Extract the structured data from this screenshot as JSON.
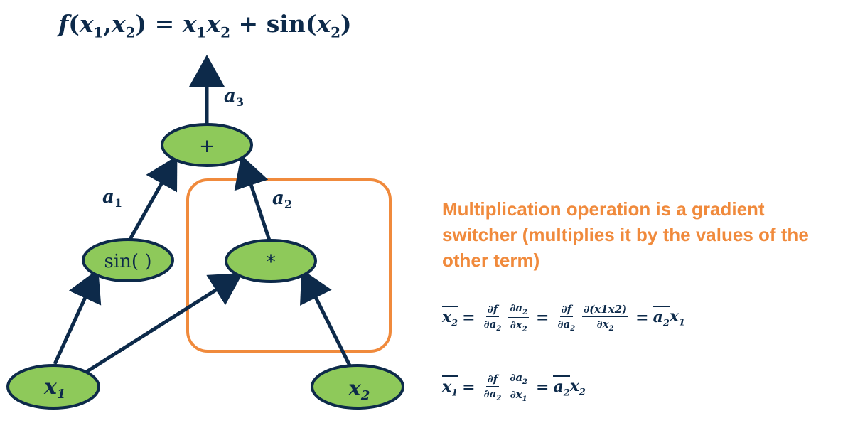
{
  "formula": {
    "f": "f",
    "open": "(",
    "x1_base": "x",
    "x1_sub": "1",
    "comma": ",",
    "x2_base": "x",
    "x2_sub": "2",
    "close": ")",
    "eq": "=",
    "t1a": "x",
    "t1a_sub": "1",
    "t1b": "x",
    "t1b_sub": "2",
    "plus": "+",
    "sin": "sin",
    "sin_open": "(",
    "sin_arg": "x",
    "sin_arg_sub": "2",
    "sin_close": ")"
  },
  "nodes": {
    "plus": "+",
    "sin": "sin( )",
    "mul": "*",
    "x1_base": "x",
    "x1_sub": "1",
    "x2_base": "x",
    "x2_sub": "2"
  },
  "edges": {
    "a1_base": "a",
    "a1_sub": "1",
    "a2_base": "a",
    "a2_sub": "2",
    "a3_base": "a",
    "a3_sub": "3"
  },
  "note": "Multiplication operation is a gradient switcher (multiplies it by the values of the other term)",
  "eq1": {
    "lhs": "x",
    "lhs_sub": "2",
    "eq": "=",
    "f1_num": "∂f",
    "f1_den": "∂a",
    "f1_den_sub": "2",
    "f2_num": "∂a",
    "f2_num_sub": "2",
    "f2_den": "∂x",
    "f2_den_sub": "2",
    "eq2": "=",
    "f3_num": "∂f",
    "f3_den": "∂a",
    "f3_den_sub": "2",
    "f4_num": "∂(x1x2)",
    "f4_den": "∂x",
    "f4_den_sub": "2",
    "eq3": "=",
    "rhs_a": "a",
    "rhs_a_sub": "2",
    "rhs_x": "x",
    "rhs_x_sub": "1"
  },
  "eq2": {
    "lhs": "x",
    "lhs_sub": "1",
    "eq": "=",
    "f1_num": "∂f",
    "f1_den": "∂a",
    "f1_den_sub": "2",
    "f2_num": "∂a",
    "f2_num_sub": "2",
    "f2_den": "∂x",
    "f2_den_sub": "1",
    "eq2": "=",
    "rhs_a": "a",
    "rhs_a_sub": "2",
    "rhs_x": "x",
    "rhs_x_sub": "2"
  },
  "colors": {
    "node_fill": "#8ec95a",
    "edge": "#0d2a4a",
    "highlight_box": "#f08a3c",
    "note_text": "#f08a3c"
  }
}
